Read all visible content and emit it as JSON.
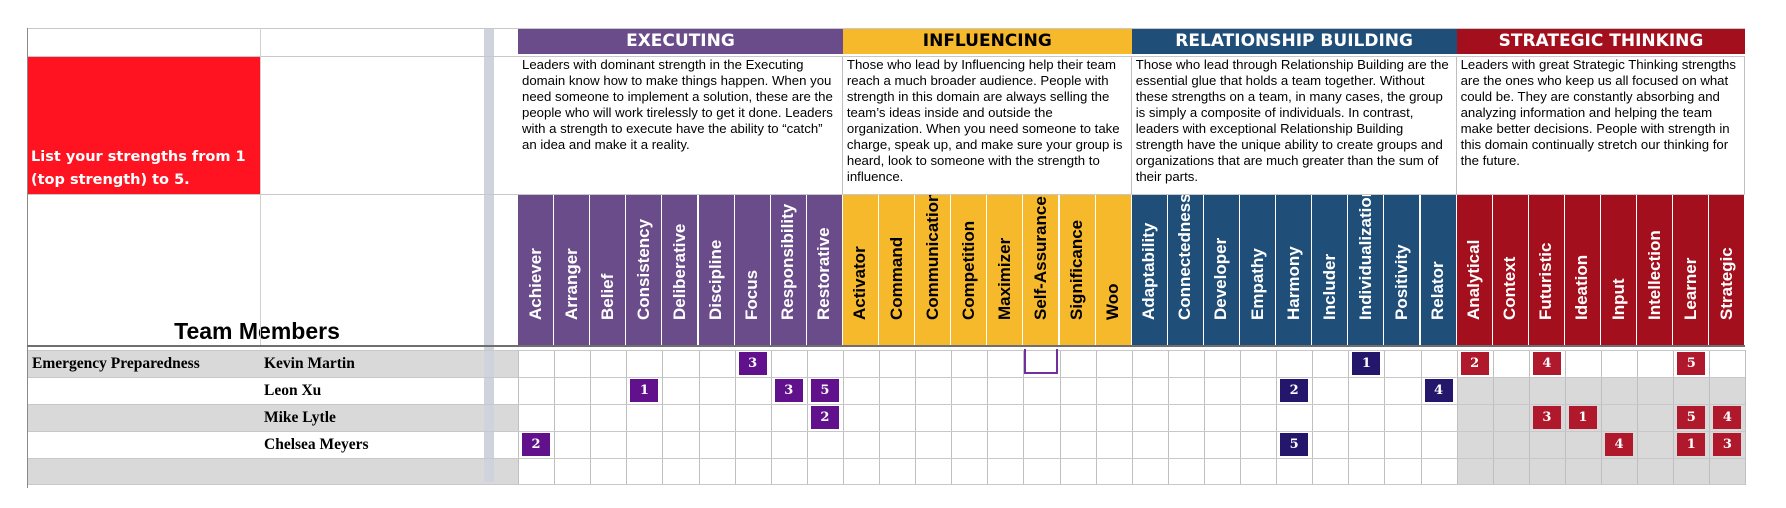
{
  "instruction": "List your strengths from 1 (top strength) to 5.",
  "team_members_header": "Team Members",
  "colors": {
    "executing": "#6b4c8a",
    "influencing": "#f6b92b",
    "relationship": "#1f4e79",
    "strategic": "#a30f1c",
    "instruction_bg": "#ff1321",
    "row_shade": "#d9d9d9",
    "executing_badge": "#61118c",
    "relationship_badge": "#23166b",
    "strategic_badge": "#b0182c"
  },
  "domains": [
    {
      "key": "executing",
      "title": "EXECUTING",
      "description": "Leaders with dominant strength in the Executing domain know how to make things happen. When you need someone to implement a solution, these are the people who will work tirelessly to get it done. Leaders with a strength to execute have the ability to “catch” an idea and make it a reality.",
      "strengths": [
        "Achiever",
        "Arranger",
        "Belief",
        "Consistency",
        "Deliberative",
        "Discipline",
        "Focus",
        "Responsibility",
        "Restorative"
      ]
    },
    {
      "key": "influencing",
      "title": "INFLUENCING",
      "description": "Those who lead by Influencing help their team reach a much broader audience. People with strength in this domain are always selling the team’s ideas inside and outside the organization. When you need someone to take charge, speak up, and make sure your group is heard, look to someone with the strength to influence.",
      "strengths": [
        "Activator",
        "Command",
        "Communication",
        "Competition",
        "Maximizer",
        "Self-Assurance",
        "Significance",
        "Woo"
      ]
    },
    {
      "key": "relationship",
      "title": "RELATIONSHIP BUILDING",
      "description": "Those who lead through Relationship Building are the essential glue that holds a team together. Without these strengths on a team, in many cases, the group is simply a composite of individuals. In contrast, leaders with exceptional Relationship Building strength have the unique ability to create groups and organizations that are much greater than the sum of their parts.",
      "strengths": [
        "Adaptability",
        "Connectedness",
        "Developer",
        "Empathy",
        "Harmony",
        "Includer",
        "Individualization",
        "Positivity",
        "Relator"
      ]
    },
    {
      "key": "strategic",
      "title": "STRATEGIC THINKING",
      "description": "Leaders with great Strategic Thinking strengths are the ones who keep us all focused on what could be. They are constantly absorbing and analyzing information and helping the team make better decisions. People with strength in this domain continually stretch our thinking for the future.",
      "strengths": [
        "Analytical",
        "Context",
        "Futuristic",
        "Ideation",
        "Input",
        "Intellection",
        "Learner",
        "Strategic"
      ]
    }
  ],
  "rows": [
    {
      "team": "Emergency Preparedness",
      "member": "Kevin Martin",
      "ranks": {
        "Focus": "3",
        "Individualization": "1",
        "Analytical": "2",
        "Futuristic": "4",
        "Learner": "5"
      }
    },
    {
      "team": "",
      "member": "Leon Xu",
      "ranks": {
        "Consistency": "1",
        "Responsibility": "3",
        "Restorative": "5",
        "Harmony": "2",
        "Relator": "4"
      }
    },
    {
      "team": "",
      "member": "Mike Lytle",
      "ranks": {
        "Restorative": "2",
        "Futuristic": "3",
        "Ideation": "1",
        "Learner": "5",
        "Strategic": "4"
      }
    },
    {
      "team": "",
      "member": "Chelsea Meyers",
      "ranks": {
        "Achiever": "2",
        "Harmony": "5",
        "Input": "4",
        "Learner": "1",
        "Strategic": "3"
      }
    }
  ]
}
